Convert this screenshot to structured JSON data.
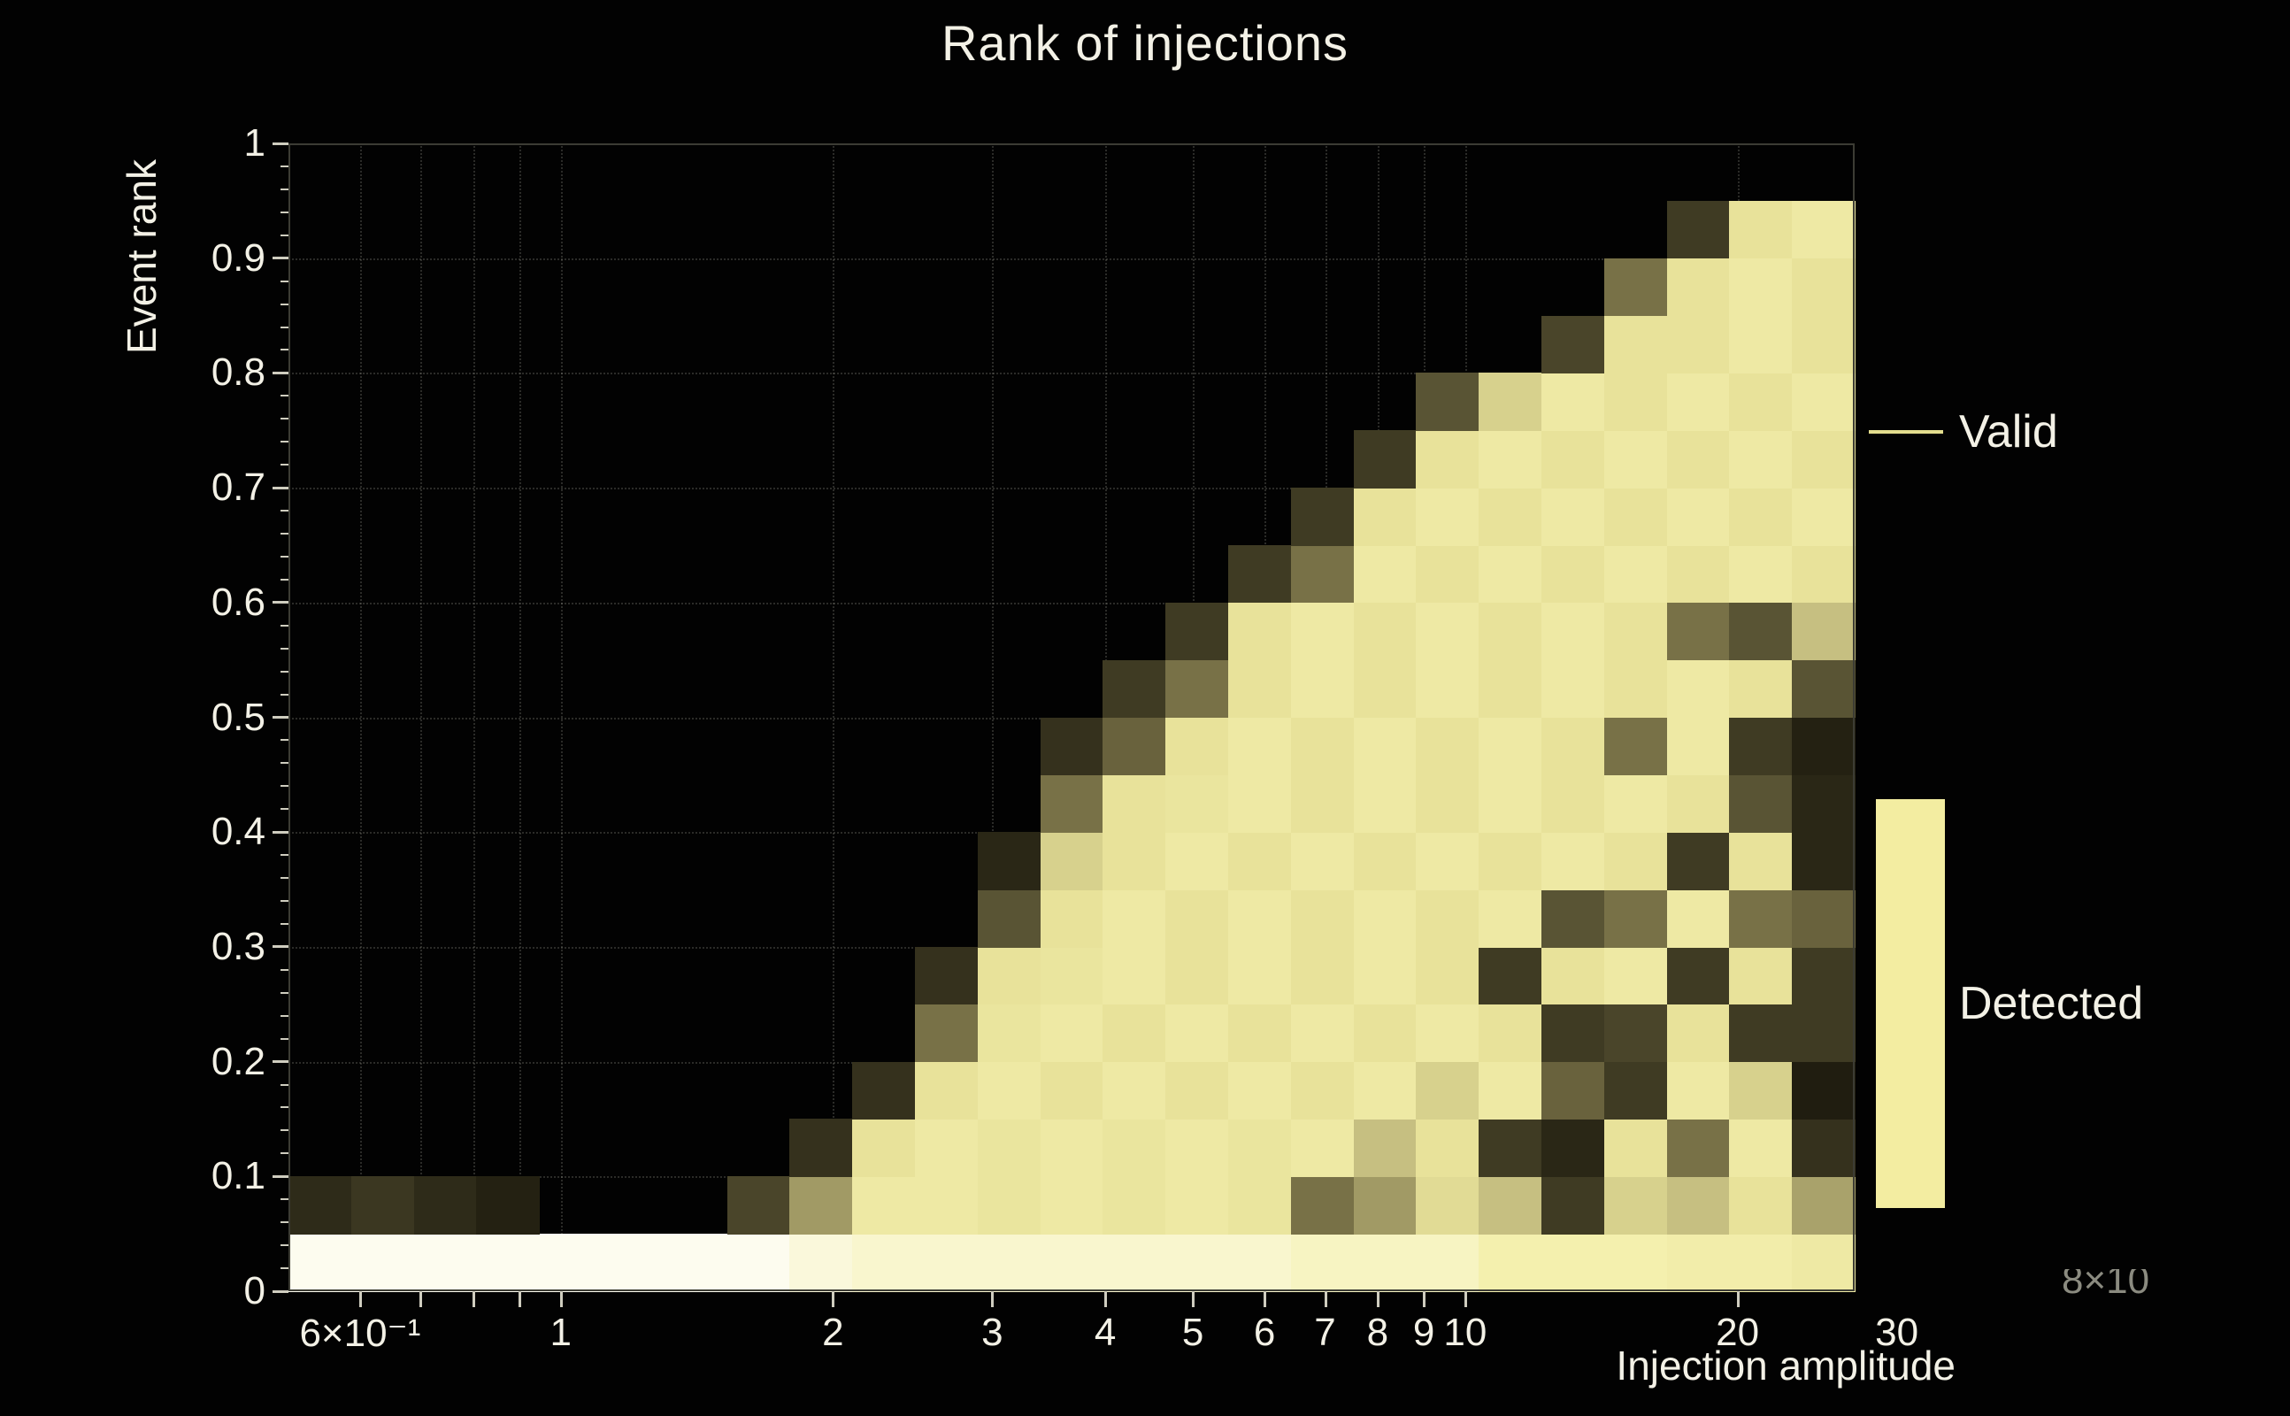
{
  "chart_data": {
    "type": "heatmap",
    "title": "Rank of injections",
    "xlabel": "Injection amplitude",
    "ylabel": "Event rank",
    "axis_offset_text": "8×10",
    "xscale": "log",
    "xlim": [
      0.5,
      26.95
    ],
    "ylim": [
      0,
      1
    ],
    "grid": true,
    "legend_position": "right",
    "legend_entries": [
      {
        "label": "Valid",
        "style": "line",
        "color": "#e3dd8e"
      },
      {
        "label": "Detected",
        "style": "filled-box",
        "color": "#f3eda1"
      }
    ],
    "colors": {
      "background": "#020202",
      "text": "#f3f1e6",
      "frame": "#3c3c34",
      "tick": "#cfcdbf",
      "grid": "#bebeb2"
    },
    "x_tick_labels": [
      {
        "v": 0.6,
        "label": "6×10⁻¹"
      },
      {
        "v": 1,
        "label": "1"
      },
      {
        "v": 2,
        "label": "2"
      },
      {
        "v": 3,
        "label": "3"
      },
      {
        "v": 4,
        "label": "4"
      },
      {
        "v": 5,
        "label": "5"
      },
      {
        "v": 6,
        "label": "6"
      },
      {
        "v": 7,
        "label": "7"
      },
      {
        "v": 8,
        "label": "8"
      },
      {
        "v": 9,
        "label": "9"
      },
      {
        "v": 10,
        "label": "10"
      },
      {
        "v": 20,
        "label": "20"
      },
      {
        "v": 30,
        "label": "30"
      }
    ],
    "x_tick_marks": [
      0.6,
      0.7,
      0.8,
      0.9,
      1,
      2,
      3,
      4,
      5,
      6,
      7,
      8,
      9,
      10,
      20
    ],
    "y_tick_labels": [
      {
        "v": 0,
        "label": "0"
      },
      {
        "v": 0.1,
        "label": "0.1"
      },
      {
        "v": 0.2,
        "label": "0.2"
      },
      {
        "v": 0.3,
        "label": "0.3"
      },
      {
        "v": 0.4,
        "label": "0.4"
      },
      {
        "v": 0.5,
        "label": "0.5"
      },
      {
        "v": 0.6,
        "label": "0.6"
      },
      {
        "v": 0.7,
        "label": "0.7"
      },
      {
        "v": 0.8,
        "label": "0.8"
      },
      {
        "v": 0.9,
        "label": "0.9"
      },
      {
        "v": 1,
        "label": "1"
      }
    ],
    "y_minor_step": 0.02,
    "x_grid": [
      0.6,
      0.7,
      0.8,
      0.9,
      1,
      2,
      3,
      4,
      5,
      6,
      7,
      8,
      9,
      10,
      20
    ],
    "y_grid": [
      0.1,
      0.2,
      0.3,
      0.4,
      0.5,
      0.6,
      0.7,
      0.8,
      0.9
    ],
    "x_bin_edges": [
      0.5,
      0.5865,
      0.6879,
      0.8068,
      0.9463,
      1.1099,
      1.3018,
      1.5269,
      1.7909,
      2.1006,
      2.4638,
      2.8898,
      3.3895,
      3.9755,
      4.6629,
      5.4692,
      6.4148,
      7.5238,
      8.8247,
      10.3506,
      12.1402,
      14.2393,
      16.7013,
      19.5891,
      22.9762,
      26.95
    ],
    "y_bin_edges": [
      0,
      0.05,
      0.1,
      0.15,
      0.2,
      0.25,
      0.3,
      0.35,
      0.4,
      0.45,
      0.5,
      0.55,
      0.6,
      0.65,
      0.7,
      0.75,
      0.8,
      0.85,
      0.9,
      0.95
    ],
    "colormap_stops": [
      [
        0.0,
        "#100e06"
      ],
      [
        0.2,
        "#2a2716"
      ],
      [
        0.35,
        "#4a452a"
      ],
      [
        0.5,
        "#787147"
      ],
      [
        0.65,
        "#b5ae74"
      ],
      [
        0.8,
        "#e8e29a"
      ],
      [
        0.9,
        "#f4f0ae"
      ],
      [
        1.0,
        "#fdfcef"
      ]
    ],
    "values": [
      [
        1,
        1,
        1,
        1,
        1,
        1,
        1,
        1,
        0.97,
        0.95,
        0.95,
        0.95,
        0.95,
        0.95,
        0.95,
        0.95,
        0.93,
        0.93,
        0.93,
        0.9,
        0.9,
        0.9,
        0.88,
        0.88,
        0.85
      ],
      [
        0.22,
        0.28,
        0.22,
        0.15,
        null,
        null,
        null,
        0.35,
        0.6,
        0.85,
        0.85,
        0.82,
        0.85,
        0.82,
        0.85,
        0.82,
        0.5,
        0.6,
        0.78,
        0.7,
        0.3,
        0.75,
        0.7,
        0.8,
        0.62
      ],
      [
        null,
        null,
        null,
        null,
        null,
        null,
        null,
        null,
        0.25,
        0.8,
        0.85,
        0.82,
        0.85,
        0.82,
        0.85,
        0.82,
        0.85,
        0.7,
        0.8,
        0.3,
        0.2,
        0.8,
        0.5,
        0.85,
        0.25
      ],
      [
        null,
        null,
        null,
        null,
        null,
        null,
        null,
        null,
        null,
        0.25,
        0.8,
        0.85,
        0.8,
        0.85,
        0.8,
        0.85,
        0.8,
        0.85,
        0.75,
        0.85,
        0.45,
        0.3,
        0.85,
        0.75,
        0.12
      ],
      [
        null,
        null,
        null,
        null,
        null,
        null,
        null,
        null,
        null,
        null,
        0.5,
        0.82,
        0.85,
        0.8,
        0.85,
        0.8,
        0.85,
        0.8,
        0.85,
        0.8,
        0.3,
        0.35,
        0.8,
        0.3,
        0.3
      ],
      [
        null,
        null,
        null,
        null,
        null,
        null,
        null,
        null,
        null,
        null,
        0.25,
        0.8,
        0.82,
        0.85,
        0.8,
        0.85,
        0.8,
        0.85,
        0.8,
        0.3,
        0.8,
        0.85,
        0.3,
        0.8,
        0.3
      ],
      [
        null,
        null,
        null,
        null,
        null,
        null,
        null,
        null,
        null,
        null,
        null,
        0.4,
        0.8,
        0.85,
        0.8,
        0.85,
        0.8,
        0.85,
        0.8,
        0.85,
        0.4,
        0.5,
        0.85,
        0.5,
        0.45
      ],
      [
        null,
        null,
        null,
        null,
        null,
        null,
        null,
        null,
        null,
        null,
        null,
        0.2,
        0.75,
        0.8,
        0.85,
        0.8,
        0.85,
        0.8,
        0.85,
        0.8,
        0.85,
        0.8,
        0.3,
        0.8,
        0.2
      ],
      [
        null,
        null,
        null,
        null,
        null,
        null,
        null,
        null,
        null,
        null,
        null,
        null,
        0.5,
        0.8,
        0.82,
        0.85,
        0.8,
        0.85,
        0.8,
        0.85,
        0.8,
        0.85,
        0.8,
        0.4,
        0.2
      ],
      [
        null,
        null,
        null,
        null,
        null,
        null,
        null,
        null,
        null,
        null,
        null,
        null,
        0.25,
        0.45,
        0.8,
        0.85,
        0.8,
        0.85,
        0.8,
        0.85,
        0.8,
        0.5,
        0.85,
        0.3,
        0.15
      ],
      [
        null,
        null,
        null,
        null,
        null,
        null,
        null,
        null,
        null,
        null,
        null,
        null,
        null,
        0.3,
        0.5,
        0.8,
        0.85,
        0.8,
        0.85,
        0.8,
        0.85,
        0.8,
        0.85,
        0.8,
        0.4
      ],
      [
        null,
        null,
        null,
        null,
        null,
        null,
        null,
        null,
        null,
        null,
        null,
        null,
        null,
        null,
        0.3,
        0.8,
        0.85,
        0.8,
        0.85,
        0.8,
        0.85,
        0.8,
        0.5,
        0.4,
        0.7
      ],
      [
        null,
        null,
        null,
        null,
        null,
        null,
        null,
        null,
        null,
        null,
        null,
        null,
        null,
        null,
        null,
        0.3,
        0.5,
        0.85,
        0.8,
        0.85,
        0.8,
        0.85,
        0.8,
        0.85,
        0.8
      ],
      [
        null,
        null,
        null,
        null,
        null,
        null,
        null,
        null,
        null,
        null,
        null,
        null,
        null,
        null,
        null,
        null,
        0.3,
        0.8,
        0.85,
        0.8,
        0.85,
        0.8,
        0.85,
        0.8,
        0.85
      ],
      [
        null,
        null,
        null,
        null,
        null,
        null,
        null,
        null,
        null,
        null,
        null,
        null,
        null,
        null,
        null,
        null,
        null,
        0.3,
        0.8,
        0.85,
        0.8,
        0.85,
        0.8,
        0.85,
        0.8
      ],
      [
        null,
        null,
        null,
        null,
        null,
        null,
        null,
        null,
        null,
        null,
        null,
        null,
        null,
        null,
        null,
        null,
        null,
        null,
        0.4,
        0.75,
        0.85,
        0.8,
        0.85,
        0.8,
        0.85
      ],
      [
        null,
        null,
        null,
        null,
        null,
        null,
        null,
        null,
        null,
        null,
        null,
        null,
        null,
        null,
        null,
        null,
        null,
        null,
        null,
        null,
        0.35,
        0.8,
        0.8,
        0.85,
        0.8
      ],
      [
        null,
        null,
        null,
        null,
        null,
        null,
        null,
        null,
        null,
        null,
        null,
        null,
        null,
        null,
        null,
        null,
        null,
        null,
        null,
        null,
        null,
        0.5,
        0.8,
        0.85,
        0.8
      ],
      [
        null,
        null,
        null,
        null,
        null,
        null,
        null,
        null,
        null,
        null,
        null,
        null,
        null,
        null,
        null,
        null,
        null,
        null,
        null,
        null,
        null,
        null,
        0.3,
        0.8,
        0.85
      ]
    ]
  }
}
